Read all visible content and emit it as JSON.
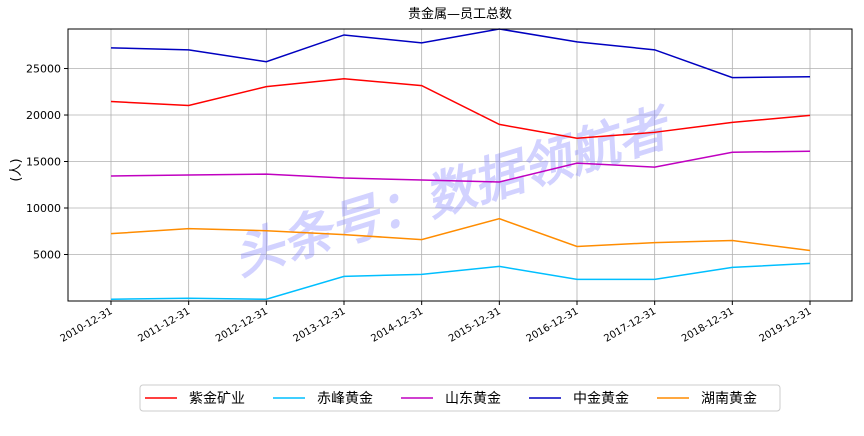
{
  "chart_data": {
    "type": "line",
    "title": "贵金属—员工总数",
    "ylabel": "(人)",
    "watermark": "头条号：数据领航者",
    "categories": [
      "2010-12-31",
      "2011-12-31",
      "2012-12-31",
      "2013-12-31",
      "2014-12-31",
      "2015-12-31",
      "2016-12-31",
      "2017-12-31",
      "2018-12-31",
      "2019-12-31"
    ],
    "series": [
      {
        "name": "紫金矿业",
        "color": "#ff0000",
        "values": [
          21450,
          21030,
          23050,
          23900,
          23160,
          18990,
          17500,
          18140,
          19210,
          19960
        ]
      },
      {
        "name": "赤峰黄金",
        "color": "#00bfff",
        "values": [
          190,
          300,
          190,
          2650,
          2860,
          3720,
          2330,
          2330,
          3610,
          4040
        ]
      },
      {
        "name": "山东黄金",
        "color": "#c000c0",
        "values": [
          13440,
          13550,
          13650,
          13230,
          13010,
          12800,
          14830,
          14400,
          16000,
          16110
        ]
      },
      {
        "name": "中金黄金",
        "color": "#0000c0",
        "values": [
          27220,
          27010,
          25730,
          28610,
          27760,
          29250,
          27860,
          27010,
          24020,
          24120
        ]
      },
      {
        "name": "湖南黄金",
        "color": "#ff8c00",
        "values": [
          7240,
          7780,
          7560,
          7140,
          6600,
          8850,
          5860,
          6280,
          6500,
          5430
        ]
      }
    ],
    "ylim": [
      0,
      29250
    ],
    "yticks": [
      5000,
      10000,
      15000,
      20000,
      25000
    ],
    "grid": true,
    "legend": "bottom"
  }
}
